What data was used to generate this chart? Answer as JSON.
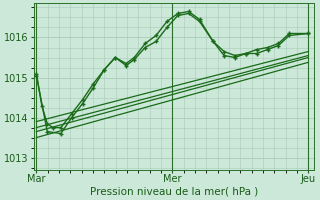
{
  "background_color": "#cce8d8",
  "plot_bg_color": "#cce8d8",
  "grid_color": "#aacaba",
  "line_color": "#1a6b1a",
  "tick_label_color": "#1a5c1a",
  "xlabel": "Pression niveau de la mer( hPa )",
  "xtick_labels": [
    "Mar",
    "Mer",
    "Jeu"
  ],
  "xtick_positions": [
    0.0,
    0.5,
    1.0
  ],
  "ylim": [
    1012.7,
    1016.85
  ],
  "yticks": [
    1013,
    1014,
    1015,
    1016
  ],
  "figsize": [
    3.2,
    2.0
  ],
  "dpi": 100,
  "series1_x": [
    0.0,
    0.02,
    0.04,
    0.06,
    0.09,
    0.13,
    0.17,
    0.21,
    0.25,
    0.29,
    0.33,
    0.36,
    0.4,
    0.44,
    0.48,
    0.52,
    0.56,
    0.6,
    0.65,
    0.69,
    0.73,
    0.77,
    0.81,
    0.85,
    0.89,
    0.93,
    1.0
  ],
  "series1_y": [
    1015.1,
    1014.3,
    1013.85,
    1013.75,
    1013.75,
    1014.1,
    1014.45,
    1014.85,
    1015.2,
    1015.5,
    1015.35,
    1015.5,
    1015.85,
    1016.05,
    1016.4,
    1016.6,
    1016.65,
    1016.45,
    1015.9,
    1015.65,
    1015.55,
    1015.6,
    1015.7,
    1015.75,
    1015.85,
    1016.1,
    1016.1
  ],
  "series2_x": [
    0.0,
    0.04,
    0.09,
    0.13,
    0.17,
    0.21,
    0.25,
    0.29,
    0.33,
    0.36,
    0.4,
    0.44,
    0.48,
    0.52,
    0.56,
    0.6,
    0.65,
    0.69,
    0.73,
    0.77,
    0.81,
    0.85,
    0.89,
    0.93,
    1.0
  ],
  "series2_y": [
    1015.05,
    1013.65,
    1013.6,
    1014.0,
    1014.35,
    1014.75,
    1015.2,
    1015.5,
    1015.3,
    1015.45,
    1015.75,
    1015.9,
    1016.25,
    1016.55,
    1016.6,
    1016.4,
    1015.9,
    1015.55,
    1015.5,
    1015.6,
    1015.6,
    1015.7,
    1015.8,
    1016.05,
    1016.1
  ],
  "trend1_x": [
    0.0,
    1.0
  ],
  "trend1_y": [
    1013.9,
    1015.65
  ],
  "trend2_x": [
    0.0,
    1.0
  ],
  "trend2_y": [
    1013.75,
    1015.55
  ],
  "trend3_x": [
    0.0,
    1.0
  ],
  "trend3_y": [
    1013.65,
    1015.5
  ],
  "trend4_x": [
    0.0,
    1.0
  ],
  "trend4_y": [
    1013.5,
    1015.38
  ]
}
